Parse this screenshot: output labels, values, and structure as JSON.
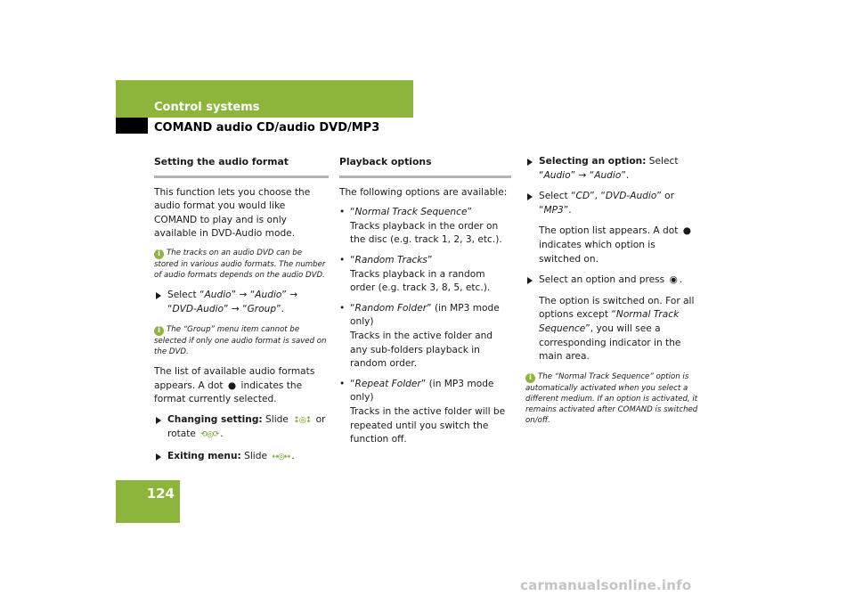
{
  "header": {
    "section_title": "Control systems",
    "subsection_title": "COMAND audio CD/audio DVD/MP3",
    "page_number": "124",
    "accent_color": "#8db53c"
  },
  "col1": {
    "heading": "Setting the audio format",
    "intro": "This function lets you choose the audio format you would like COMAND to play and is only available in DVD-Audio mode.",
    "note1": "The tracks on an audio DVD can be stored in various audio formats. The number of audio formats depends on the audio DVD.",
    "step1": {
      "prefix": "Select “",
      "a": "Audio",
      "sep1": "” → “",
      "b": "Audio",
      "sep2": "” → “",
      "c": "DVD-Audio",
      "sep3": "” → “",
      "d": "Group",
      "suffix": "”."
    },
    "note2": "The “Group” menu item cannot be selected if only one audio format is saved on the DVD.",
    "list_text_a": "The list of available audio formats appears. A dot",
    "list_text_b": "indicates the format currently selected.",
    "step2": {
      "label": "Changing setting:",
      "text_a": "Slide",
      "text_b": "or rotate"
    },
    "step3": {
      "label": "Exiting menu:",
      "text_a": "Slide"
    }
  },
  "col2": {
    "heading": "Playback options",
    "intro": "The following options are available:",
    "options": [
      {
        "name": "Normal Track Sequence",
        "extra": "",
        "desc": "Tracks playback in the order on the disc (e.g. track 1, 2, 3, etc.)."
      },
      {
        "name": "Random Tracks",
        "extra": "",
        "desc": "Tracks playback in a random order (e.g. track 3, 8, 5, etc.)."
      },
      {
        "name": "Random Folder",
        "extra": " (in MP3 mode only)",
        "desc": "Tracks in the active folder and any sub-folders playback in random order."
      },
      {
        "name": "Repeat Folder",
        "extra": " (in MP3 mode only)",
        "desc": "Tracks in the active folder will be repeated until you switch the function off."
      }
    ]
  },
  "col3": {
    "step1": {
      "label": "Selecting an option:",
      "prefix": "Select “",
      "a": "Audio",
      "sep": "” → “",
      "b": "Audio",
      "suffix": "”."
    },
    "step2": {
      "prefix": "Select “",
      "a": "CD",
      "sep1": "”, “",
      "b": "DVD-Audio",
      "sep2": "” or “",
      "c": "MP3",
      "suffix": "”."
    },
    "step2_detail_a": "The option list appears. A dot",
    "step2_detail_b": "indicates which option is switched on.",
    "step3": "Select an option and press",
    "step3_detail_a": "The option is switched on. For all options except “",
    "step3_detail_name": "Normal Track Sequence",
    "step3_detail_b": "”, you will see a corresponding indicator in the main area.",
    "note": "The “Normal Track Sequence” option is automatically activated when you select a different medium. If an option is activated, it remains activated after COMAND is switched on/off."
  },
  "watermark": "carmanualsonline.info"
}
